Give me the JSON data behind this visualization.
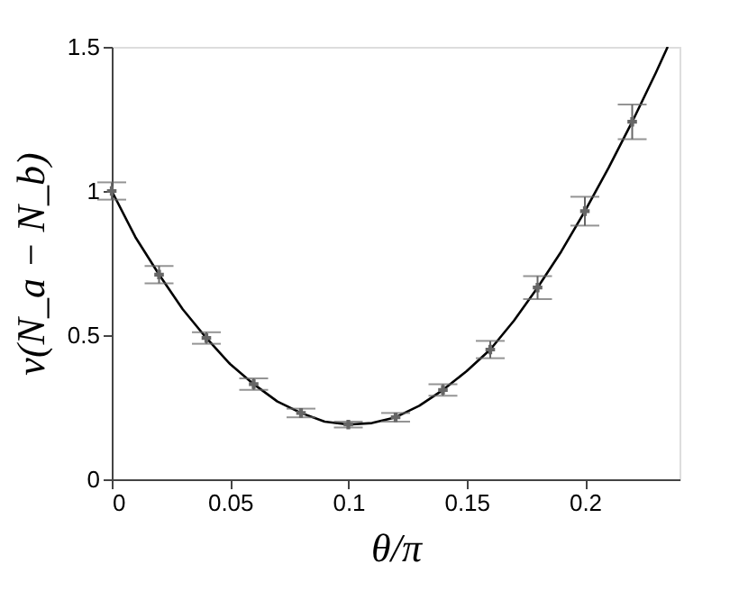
{
  "chart_data": {
    "type": "line",
    "xlabel": "θ/π",
    "ylabel": "v(N_a − N_b)",
    "xlim": [
      0,
      0.24
    ],
    "ylim": [
      0,
      1.5
    ],
    "xticks": [
      0,
      0.05,
      0.1,
      0.15,
      0.2
    ],
    "yticks": [
      0,
      0.5,
      1,
      1.5
    ],
    "grid": false,
    "series": [
      {
        "type": "scatter",
        "marker": "cross",
        "color": "#666666",
        "x": [
          0,
          0.02,
          0.04,
          0.06,
          0.08,
          0.1,
          0.12,
          0.14,
          0.16,
          0.18,
          0.2,
          0.22
        ],
        "values": [
          1.0,
          0.71,
          0.49,
          0.33,
          0.23,
          0.19,
          0.215,
          0.31,
          0.45,
          0.665,
          0.93,
          1.24
        ],
        "errors": [
          0.03,
          0.03,
          0.02,
          0.02,
          0.015,
          0.01,
          0.015,
          0.02,
          0.03,
          0.04,
          0.05,
          0.06
        ]
      },
      {
        "line_style": "solid",
        "color": "#000000",
        "x": [
          0,
          0.01,
          0.02,
          0.03,
          0.04,
          0.05,
          0.06,
          0.07,
          0.08,
          0.09,
          0.1,
          0.11,
          0.12,
          0.13,
          0.14,
          0.15,
          0.16,
          0.17,
          0.18,
          0.19,
          0.2,
          0.21,
          0.22,
          0.23,
          0.235
        ],
        "values": [
          1.0,
          0.84,
          0.71,
          0.59,
          0.49,
          0.4,
          0.33,
          0.27,
          0.23,
          0.2,
          0.19,
          0.195,
          0.215,
          0.255,
          0.31,
          0.375,
          0.45,
          0.55,
          0.665,
          0.79,
          0.93,
          1.08,
          1.24,
          1.41,
          1.5
        ]
      }
    ]
  }
}
